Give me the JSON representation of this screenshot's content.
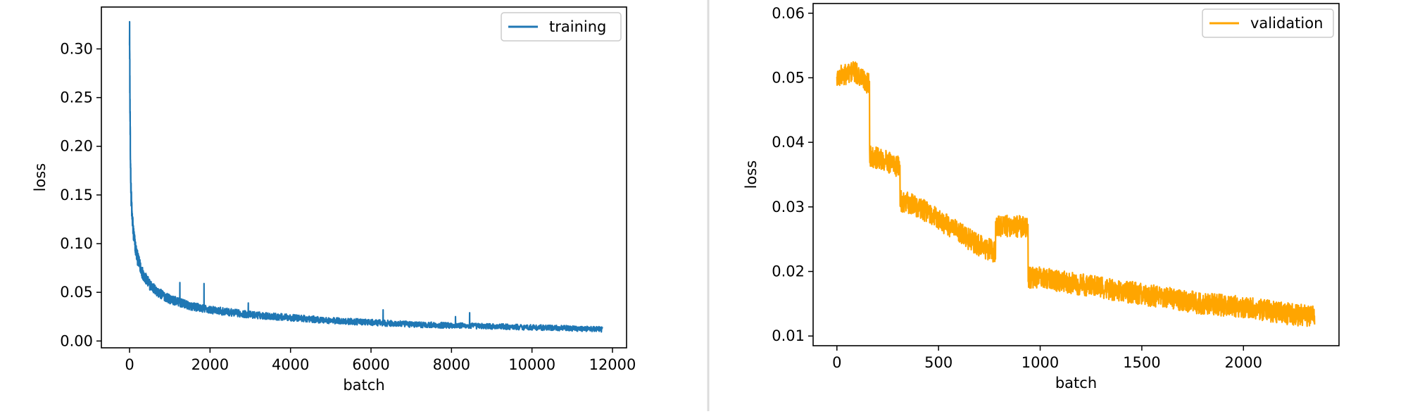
{
  "chart_data": [
    {
      "type": "line",
      "xlabel": "batch",
      "ylabel": "loss",
      "xlim": [
        -700,
        12350
      ],
      "ylim": [
        -0.007,
        0.343
      ],
      "xticks": [
        0,
        2000,
        4000,
        6000,
        8000,
        10000,
        12000
      ],
      "xtick_labels": [
        "0",
        "2000",
        "4000",
        "6000",
        "8000",
        "10000",
        "12000"
      ],
      "yticks": [
        0.0,
        0.05,
        0.1,
        0.15,
        0.2,
        0.25,
        0.3
      ],
      "ytick_labels": [
        "0.00",
        "0.05",
        "0.10",
        "0.15",
        "0.20",
        "0.25",
        "0.30"
      ],
      "grid": false,
      "legend": {
        "position": "top-right",
        "entries": [
          "training"
        ]
      },
      "series": [
        {
          "name": "training",
          "color": "#1f77b4",
          "x": [
            0,
            10,
            20,
            40,
            60,
            100,
            150,
            200,
            300,
            400,
            500,
            700,
            1000,
            1500,
            2000,
            3000,
            4000,
            5000,
            6000,
            7000,
            8000,
            9000,
            10000,
            11000,
            11750
          ],
          "y": [
            0.327,
            0.25,
            0.19,
            0.15,
            0.13,
            0.11,
            0.095,
            0.085,
            0.072,
            0.064,
            0.058,
            0.05,
            0.043,
            0.036,
            0.032,
            0.027,
            0.024,
            0.021,
            0.019,
            0.017,
            0.016,
            0.015,
            0.014,
            0.013,
            0.012
          ],
          "spikes": [
            {
              "x": 1250,
              "y": 0.06
            },
            {
              "x": 1850,
              "y": 0.059
            },
            {
              "x": 2950,
              "y": 0.039
            },
            {
              "x": 6300,
              "y": 0.032
            },
            {
              "x": 8450,
              "y": 0.029
            },
            {
              "x": 8100,
              "y": 0.025
            }
          ]
        }
      ]
    },
    {
      "type": "line",
      "xlabel": "batch",
      "ylabel": "loss",
      "xlim": [
        -117,
        2470
      ],
      "ylim": [
        0.0085,
        0.0615
      ],
      "xticks": [
        0,
        500,
        1000,
        1500,
        2000
      ],
      "xtick_labels": [
        "0",
        "500",
        "1000",
        "1500",
        "2000"
      ],
      "yticks": [
        0.01,
        0.02,
        0.03,
        0.04,
        0.05,
        0.06
      ],
      "ytick_labels": [
        "0.01",
        "0.02",
        "0.03",
        "0.04",
        "0.05",
        "0.06"
      ],
      "grid": false,
      "legend": {
        "position": "top-right",
        "entries": [
          "validation"
        ]
      },
      "series": [
        {
          "name": "validation",
          "color": "#ffa500",
          "x": [
            0,
            80,
            160,
            161,
            250,
            310,
            311,
            400,
            500,
            600,
            700,
            780,
            781,
            940,
            941,
            1000,
            1200,
            1400,
            1600,
            1800,
            2000,
            2200,
            2350
          ],
          "y": [
            0.05,
            0.051,
            0.049,
            0.038,
            0.037,
            0.036,
            0.031,
            0.03,
            0.028,
            0.026,
            0.024,
            0.023,
            0.027,
            0.027,
            0.019,
            0.019,
            0.018,
            0.017,
            0.016,
            0.015,
            0.0145,
            0.0135,
            0.013
          ],
          "noise": 0.0017
        }
      ]
    }
  ]
}
